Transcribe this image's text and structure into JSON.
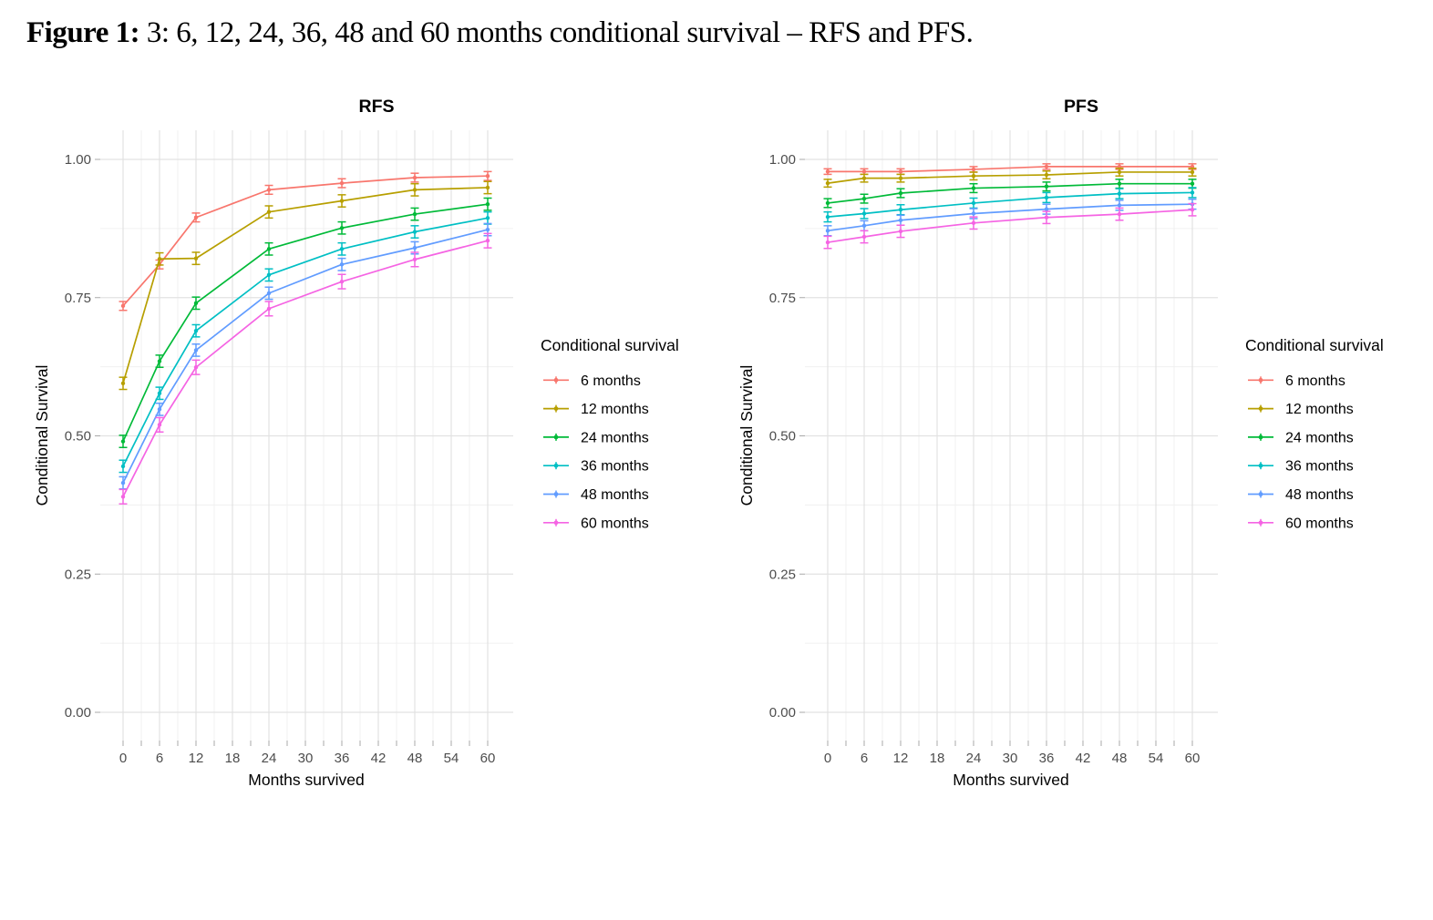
{
  "caption": {
    "label": "Figure 1:",
    "text": " 3: 6, 12, 24, 36, 48 and 60 months conditional survival – RFS and PFS."
  },
  "colors": {
    "background": "#ffffff",
    "grid_major": "#e2e2e2",
    "grid_minor": "#f0f0f0",
    "axis_tick": "#a8a8a8",
    "axis_text": "#4d4d4d"
  },
  "chart_data": [
    {
      "type": "line",
      "title": "RFS",
      "xlabel": "Months survived",
      "ylabel": "Conditional Survival",
      "legend_title": "Conditional survival",
      "legend_position": "right",
      "grid": true,
      "error_bars": true,
      "x": [
        0,
        6,
        12,
        24,
        36,
        48,
        60
      ],
      "xlim": [
        0,
        60
      ],
      "ylim": [
        0,
        1
      ],
      "xticks": [
        0,
        6,
        12,
        18,
        24,
        30,
        36,
        42,
        48,
        54,
        60
      ],
      "yticks": [
        0,
        0.25,
        0.5,
        0.75,
        1
      ],
      "xtick_labels": [
        "0",
        "6",
        "12",
        "18",
        "24",
        "30",
        "36",
        "42",
        "48",
        "54",
        "60"
      ],
      "ytick_labels": [
        "0.00",
        "0.25",
        "0.50",
        "0.75",
        "1.00"
      ],
      "series": [
        {
          "name": "6 months",
          "color": "#F8766D",
          "err": 0.008,
          "values": [
            0.735,
            0.81,
            0.895,
            0.945,
            0.957,
            0.967,
            0.97
          ]
        },
        {
          "name": "12 months",
          "color": "#B79F00",
          "err": 0.011,
          "values": [
            0.595,
            0.82,
            0.821,
            0.905,
            0.925,
            0.945,
            0.949
          ]
        },
        {
          "name": "24 months",
          "color": "#00BA38",
          "err": 0.011,
          "values": [
            0.49,
            0.635,
            0.74,
            0.838,
            0.876,
            0.901,
            0.919
          ]
        },
        {
          "name": "36 months",
          "color": "#00BFC4",
          "err": 0.011,
          "values": [
            0.445,
            0.577,
            0.69,
            0.791,
            0.838,
            0.869,
            0.894
          ]
        },
        {
          "name": "48 months",
          "color": "#619CFF",
          "err": 0.011,
          "values": [
            0.415,
            0.548,
            0.655,
            0.758,
            0.81,
            0.84,
            0.873
          ]
        },
        {
          "name": "60 months",
          "color": "#F564E3",
          "err": 0.013,
          "values": [
            0.39,
            0.52,
            0.624,
            0.73,
            0.779,
            0.819,
            0.853
          ]
        }
      ]
    },
    {
      "type": "line",
      "title": "PFS",
      "xlabel": "Months survived",
      "ylabel": "Conditional Survival",
      "legend_title": "Conditional survival",
      "legend_position": "right",
      "grid": true,
      "error_bars": true,
      "x": [
        0,
        6,
        12,
        24,
        36,
        48,
        60
      ],
      "xlim": [
        0,
        60
      ],
      "ylim": [
        0,
        1
      ],
      "xticks": [
        0,
        6,
        12,
        18,
        24,
        30,
        36,
        42,
        48,
        54,
        60
      ],
      "yticks": [
        0,
        0.25,
        0.5,
        0.75,
        1
      ],
      "xtick_labels": [
        "0",
        "6",
        "12",
        "18",
        "24",
        "30",
        "36",
        "42",
        "48",
        "54",
        "60"
      ],
      "ytick_labels": [
        "0.00",
        "0.25",
        "0.50",
        "0.75",
        "1.00"
      ],
      "series": [
        {
          "name": "6 months",
          "color": "#F8766D",
          "err": 0.005,
          "values": [
            0.978,
            0.978,
            0.978,
            0.982,
            0.987,
            0.987,
            0.987
          ]
        },
        {
          "name": "12 months",
          "color": "#B79F00",
          "err": 0.007,
          "values": [
            0.957,
            0.966,
            0.966,
            0.97,
            0.972,
            0.977,
            0.977
          ]
        },
        {
          "name": "24 months",
          "color": "#00BA38",
          "err": 0.008,
          "values": [
            0.921,
            0.929,
            0.939,
            0.948,
            0.951,
            0.956,
            0.956
          ]
        },
        {
          "name": "36 months",
          "color": "#00BFC4",
          "err": 0.009,
          "values": [
            0.896,
            0.902,
            0.909,
            0.921,
            0.931,
            0.938,
            0.94
          ]
        },
        {
          "name": "48 months",
          "color": "#619CFF",
          "err": 0.009,
          "values": [
            0.871,
            0.88,
            0.89,
            0.902,
            0.91,
            0.917,
            0.919
          ]
        },
        {
          "name": "60 months",
          "color": "#F564E3",
          "err": 0.011,
          "values": [
            0.85,
            0.86,
            0.87,
            0.885,
            0.895,
            0.901,
            0.909
          ]
        }
      ]
    }
  ]
}
